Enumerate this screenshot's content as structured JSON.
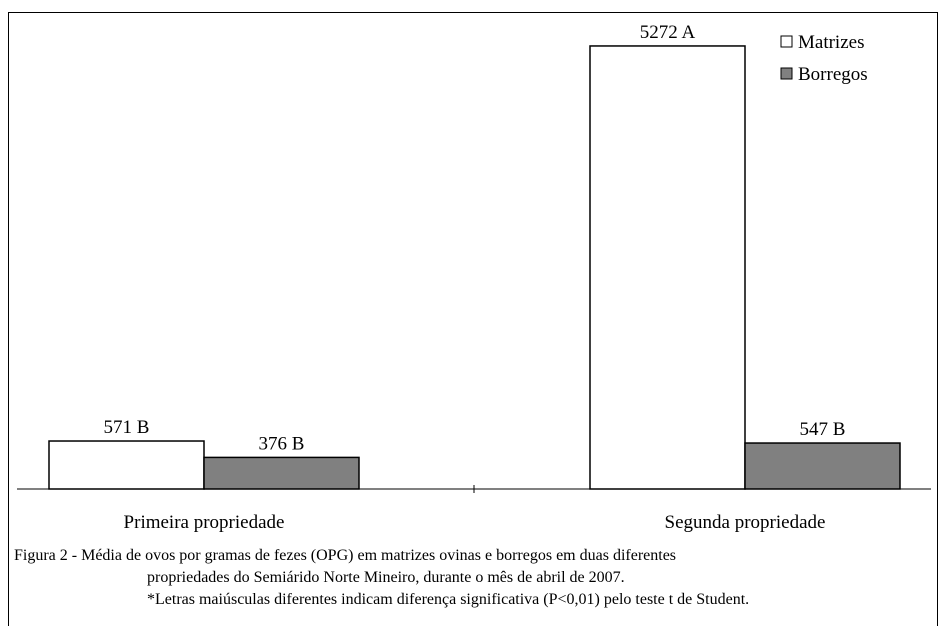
{
  "chart_data": {
    "type": "bar",
    "categories": [
      "Primeira propriedade",
      "Segunda propriedade"
    ],
    "series": [
      {
        "name": "Matrizes",
        "values": [
          571,
          5272
        ],
        "labels": [
          "571 B",
          "5272 A"
        ],
        "color": "#ffffff"
      },
      {
        "name": "Borregos",
        "values": [
          376,
          547
        ],
        "labels": [
          "376 B",
          "547 B"
        ],
        "color": "#808080"
      }
    ],
    "ylim": [
      0,
      5700
    ],
    "legend_position": "top-right",
    "grid": false
  },
  "caption": {
    "line1": "Figura 2 - Média de ovos por gramas de fezes (OPG) em matrizes ovinas e borregos em duas diferentes",
    "line2": "propriedades do Semiárido Norte Mineiro, durante o mês de abril de 2007.",
    "line3": "*Letras maiúsculas diferentes indicam diferença significativa (P<0,01) pelo teste t de Student."
  }
}
